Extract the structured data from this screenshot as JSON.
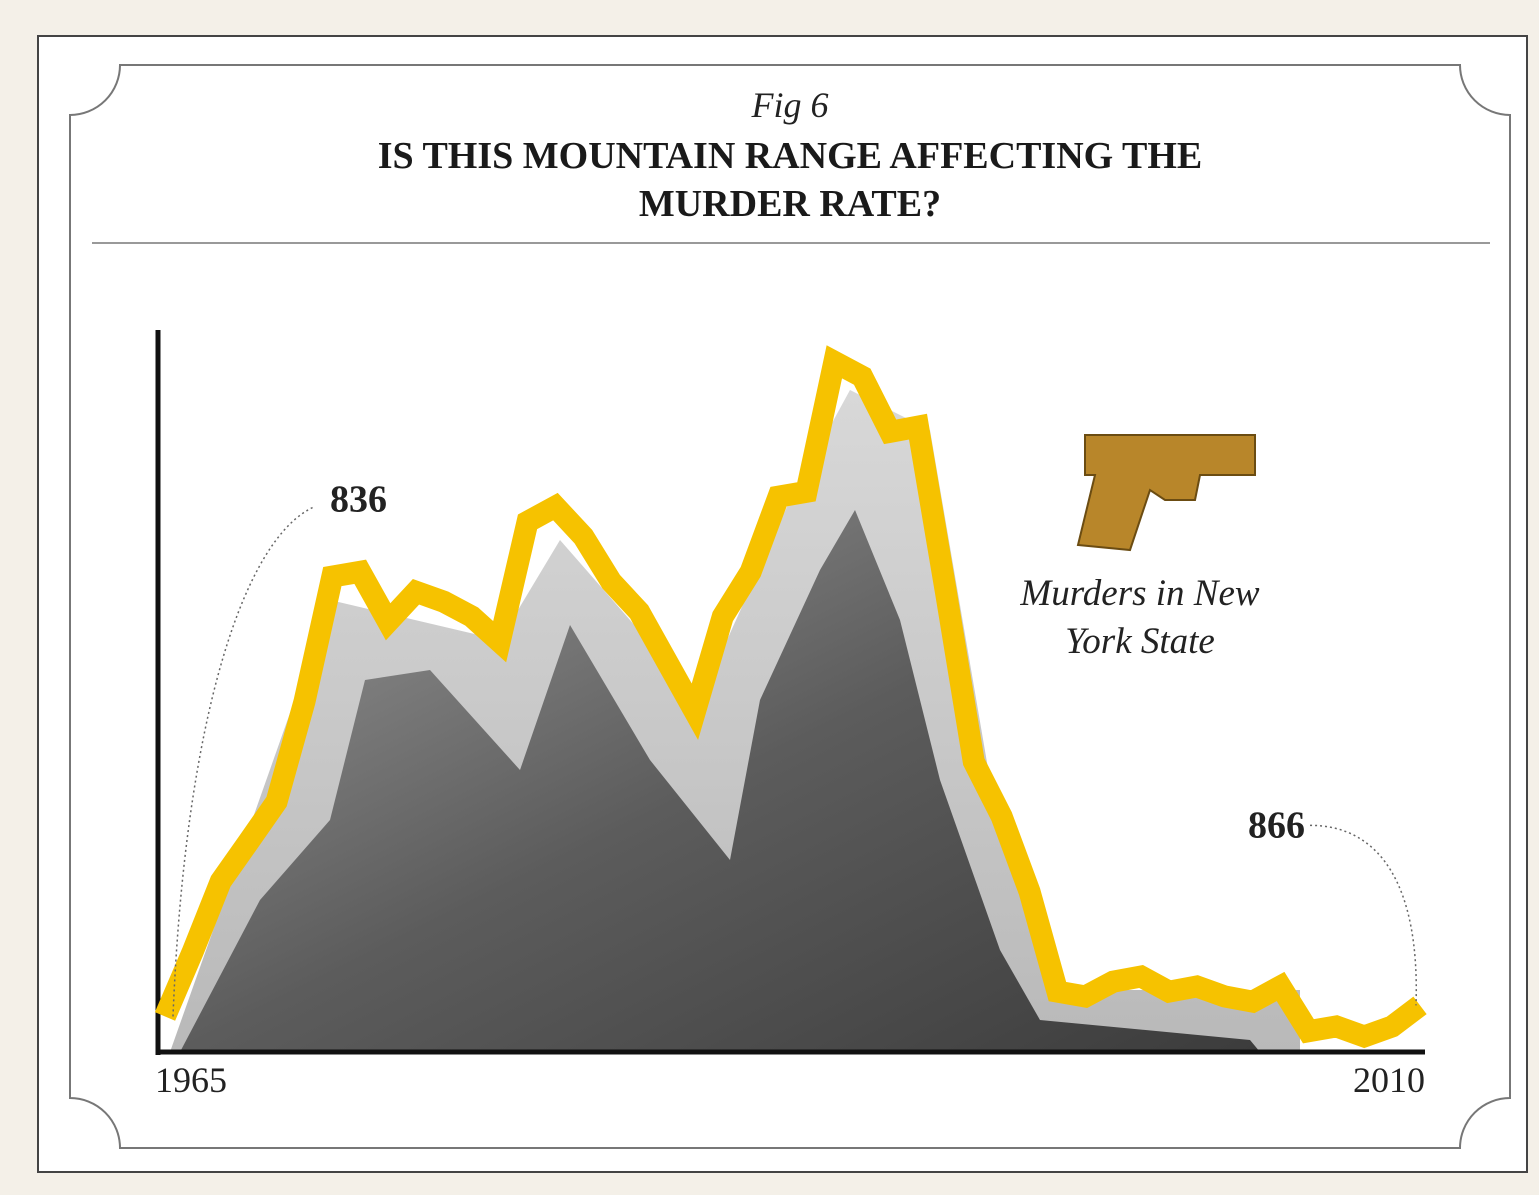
{
  "chart_data": {
    "type": "line",
    "subtitle": "Fig 6",
    "title": "IS THIS MOUNTAIN RANGE AFFECTING THE MURDER RATE?",
    "x": [
      1965,
      1966,
      1967,
      1968,
      1969,
      1970,
      1971,
      1972,
      1973,
      1974,
      1975,
      1976,
      1977,
      1978,
      1979,
      1980,
      1981,
      1982,
      1983,
      1984,
      1985,
      1986,
      1987,
      1988,
      1989,
      1990,
      1991,
      1992,
      1993,
      1994,
      1995,
      1996,
      1997,
      1998,
      1999,
      2000,
      2001,
      2002,
      2003,
      2004,
      2005,
      2006,
      2007,
      2008,
      2009,
      2010
    ],
    "series": [
      {
        "name": "Murders in New York State",
        "color": "#f6c200",
        "values": [
          836,
          1012,
          1201,
          1308,
          1416,
          1686,
          2024,
          2037,
          1902,
          1983,
          1956,
          1916,
          1848,
          2172,
          2213,
          2132,
          2010,
          1929,
          1794,
          1659,
          1916,
          2037,
          2240,
          2253,
          2604,
          2564,
          2415,
          2429,
          1983,
          1524,
          1376,
          1173,
          903,
          890,
          930,
          944,
          903,
          917,
          890,
          876,
          917,
          796,
          809,
          782,
          809,
          866
        ]
      }
    ],
    "xlim": [
      1965,
      2010
    ],
    "xticks": [
      1965,
      2010
    ],
    "ylim": [
      740,
      2690
    ]
  }
}
